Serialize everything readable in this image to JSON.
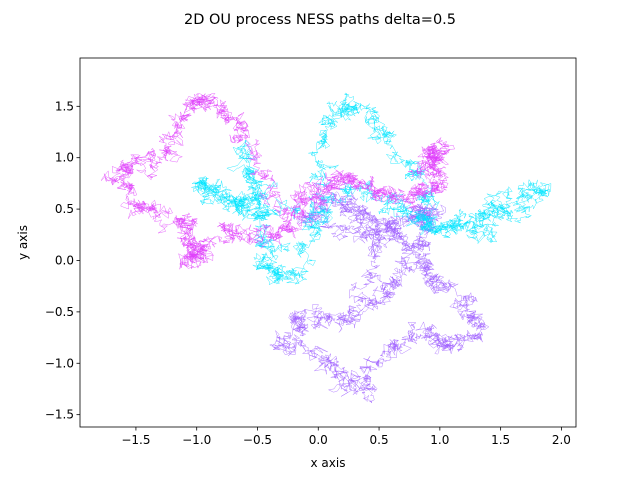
{
  "chart_data": {
    "type": "line",
    "title": "2D OU process NESS paths delta=0.5",
    "xlabel": "x axis",
    "ylabel": "y axis",
    "xlim": [
      -1.96,
      2.12
    ],
    "ylim": [
      -1.62,
      1.97
    ],
    "xticks": [
      -1.5,
      -1.0,
      -0.5,
      0.0,
      0.5,
      1.0,
      1.5,
      2.0
    ],
    "xtick_labels": [
      "−1.5",
      "−1.0",
      "−0.5",
      "0.0",
      "0.5",
      "1.0",
      "1.5",
      "2.0"
    ],
    "yticks": [
      -1.5,
      -1.0,
      -0.5,
      0.0,
      0.5,
      1.0,
      1.5
    ],
    "ytick_labels": [
      "−1.5",
      "−1.0",
      "−0.5",
      "0.0",
      "0.5",
      "1.0",
      "1.5"
    ],
    "grid": false,
    "series": [
      {
        "color": "#9f60ff",
        "waypoints": [
          [
            0.2,
            0.6
          ],
          [
            0.5,
            0.4
          ],
          [
            0.8,
            0.1
          ],
          [
            0.6,
            -0.3
          ],
          [
            0.2,
            -0.6
          ],
          [
            -0.1,
            -0.55
          ],
          [
            -0.3,
            -0.8
          ],
          [
            0.1,
            -1.0
          ],
          [
            0.35,
            -1.3
          ],
          [
            0.55,
            -0.9
          ],
          [
            0.9,
            -0.6
          ],
          [
            1.1,
            -0.85
          ],
          [
            1.3,
            -0.6
          ],
          [
            1.1,
            -0.3
          ],
          [
            0.85,
            -0.1
          ],
          [
            0.9,
            0.3
          ],
          [
            0.95,
            0.5
          ],
          [
            0.7,
            0.4
          ],
          [
            0.4,
            0.25
          ],
          [
            -0.1,
            0.4
          ],
          [
            0.1,
            0.6
          ],
          [
            0.5,
            0.2
          ],
          [
            0.35,
            -0.4
          ]
        ]
      },
      {
        "color": "#00e5ff",
        "waypoints": [
          [
            -0.2,
            0.5
          ],
          [
            -0.6,
            0.6
          ],
          [
            -1.0,
            0.75
          ],
          [
            -0.75,
            0.55
          ],
          [
            -0.5,
            0.45
          ],
          [
            -0.6,
            1.1
          ],
          [
            -0.4,
            0.2
          ],
          [
            -0.45,
            -0.1
          ],
          [
            -0.2,
            -0.2
          ],
          [
            0.0,
            0.5
          ],
          [
            0.05,
            1.3
          ],
          [
            0.3,
            1.55
          ],
          [
            0.6,
            1.2
          ],
          [
            0.9,
            0.7
          ],
          [
            0.85,
            0.35
          ],
          [
            1.3,
            0.35
          ],
          [
            1.5,
            0.6
          ],
          [
            1.9,
            0.7
          ],
          [
            1.4,
            0.3
          ],
          [
            1.0,
            0.3
          ],
          [
            0.7,
            0.5
          ],
          [
            0.3,
            0.7
          ],
          [
            -0.1,
            0.3
          ]
        ]
      },
      {
        "color": "#e040fb",
        "waypoints": [
          [
            0.0,
            0.7
          ],
          [
            -0.3,
            0.5
          ],
          [
            -0.6,
            1.25
          ],
          [
            -0.8,
            1.5
          ],
          [
            -1.05,
            1.55
          ],
          [
            -1.2,
            1.1
          ],
          [
            -1.5,
            0.95
          ],
          [
            -1.7,
            0.8
          ],
          [
            -1.4,
            0.5
          ],
          [
            -1.1,
            0.35
          ],
          [
            -1.0,
            0.1
          ],
          [
            -1.1,
            0.0
          ],
          [
            -0.8,
            0.3
          ],
          [
            -0.5,
            0.2
          ],
          [
            -0.2,
            0.35
          ],
          [
            0.1,
            0.75
          ],
          [
            0.3,
            0.8
          ],
          [
            0.5,
            0.65
          ],
          [
            0.8,
            0.6
          ],
          [
            1.0,
            0.75
          ],
          [
            0.9,
            1.0
          ],
          [
            1.05,
            1.1
          ],
          [
            0.8,
            0.85
          ]
        ]
      }
    ]
  }
}
